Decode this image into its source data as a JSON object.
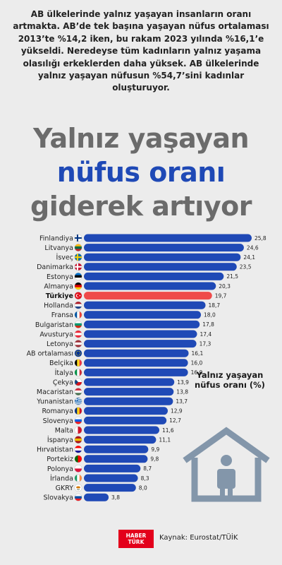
{
  "intro_text": "AB ülkelerinde yalnız yaşayan insanların oranı artmakta. AB’de tek başına yaşayan nüfus ortalaması 2013’te %14,2 iken, bu rakam 2023 yılında %16,1’e yükseldi. Neredeyse tüm kadınların yalnız yaşama olasılığı erkeklerden daha yüksek. AB ülkelerinde yalnız yaşayan nüfusun %54,7’sini kadınlar oluşturuyor.",
  "headline": {
    "line1": "Yalnız yaşayan",
    "line2": "nüfus oranı",
    "line3": "giderek artıyor"
  },
  "legend_title": "Yalnız yaşayan nüfus oranı (%)",
  "brand": {
    "line1": "HABER",
    "line2": "TÜRK"
  },
  "source": "Kaynak: Eurostat/TÜİK",
  "colors": {
    "bar": "#1f49b6",
    "highlight_bar": "#ef4a4a",
    "headline_gray": "#6b6b6b",
    "headline_blue": "#1f49b6",
    "house": "#8396aa"
  },
  "chart_data": {
    "type": "bar",
    "orientation": "horizontal",
    "categories": [
      "Finlandiya",
      "Litvanya",
      "İsveç",
      "Danimarka",
      "Estonya",
      "Almanya",
      "Türkiye",
      "Hollanda",
      "Fransa",
      "Bulgaristan",
      "Avusturya",
      "Letonya",
      "AB ortalaması",
      "Belçika",
      "İtalya",
      "Çekya",
      "Macaristan",
      "Yunanistan",
      "Romanya",
      "Slovenya",
      "Malta",
      "İspanya",
      "Hırvatistan",
      "Portekiz",
      "Polonya",
      "İrlanda",
      "GKRY",
      "Slovakya"
    ],
    "values": [
      25.8,
      24.6,
      24.1,
      23.5,
      21.5,
      20.3,
      19.7,
      18.7,
      18.0,
      17.8,
      17.4,
      17.3,
      16.1,
      16.0,
      16.0,
      13.9,
      13.8,
      13.7,
      12.9,
      12.7,
      11.6,
      11.1,
      9.9,
      9.8,
      8.7,
      8.3,
      8.0,
      3.8
    ],
    "value_labels": [
      "25,8",
      "24,6",
      "24,1",
      "23,5",
      "21,5",
      "20,3",
      "19,7",
      "18,7",
      "18,0",
      "17,8",
      "17,4",
      "17,3",
      "16,1",
      "16,0",
      "16,0",
      "13,9",
      "13,8",
      "13,7",
      "12,9",
      "12,7",
      "11,6",
      "11,1",
      "9,9",
      "9,8",
      "8,7",
      "8,3",
      "8,0",
      "3,8"
    ],
    "highlight": "Türkiye",
    "flag_icons": [
      "finland-flag-icon",
      "lithuania-flag-icon",
      "sweden-flag-icon",
      "denmark-flag-icon",
      "estonia-flag-icon",
      "germany-flag-icon",
      "turkey-flag-icon",
      "netherlands-flag-icon",
      "france-flag-icon",
      "bulgaria-flag-icon",
      "austria-flag-icon",
      "latvia-flag-icon",
      "eu-flag-icon",
      "belgium-flag-icon",
      "italy-flag-icon",
      "czechia-flag-icon",
      "hungary-flag-icon",
      "greece-flag-icon",
      "romania-flag-icon",
      "slovenia-flag-icon",
      "malta-flag-icon",
      "spain-flag-icon",
      "croatia-flag-icon",
      "portugal-flag-icon",
      "poland-flag-icon",
      "ireland-flag-icon",
      "cyprus-flag-icon",
      "slovakia-flag-icon"
    ],
    "xlim": [
      0,
      25.8
    ],
    "grid": false,
    "legend": "none"
  }
}
